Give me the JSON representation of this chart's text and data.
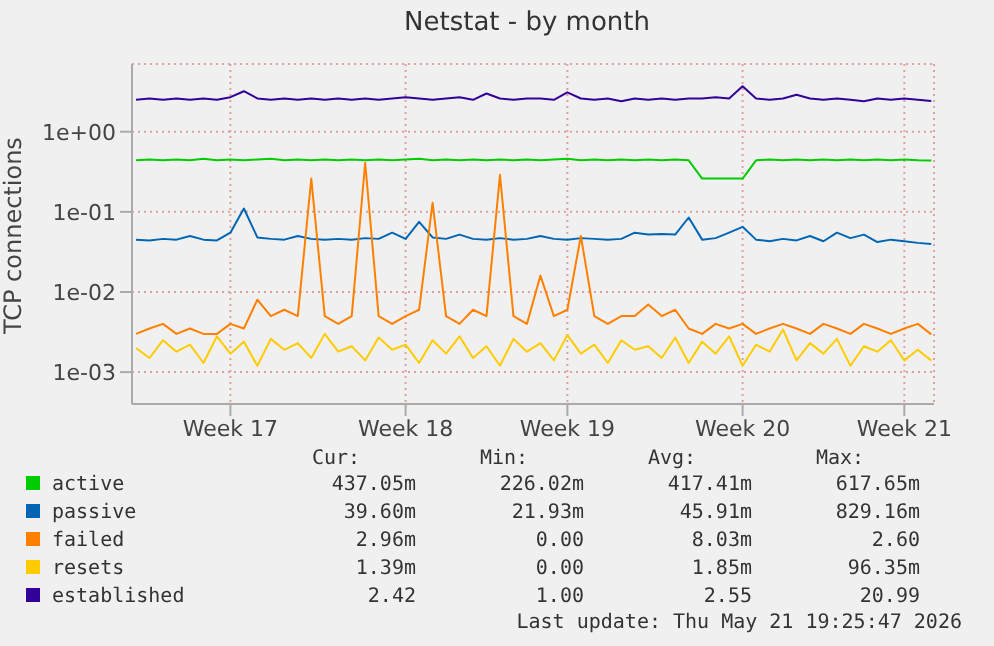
{
  "chart_data": {
    "type": "line",
    "title": "Netstat - by month",
    "ylabel": "TCP connections",
    "categories": [
      null,
      null,
      null,
      null,
      null,
      null,
      null,
      "Week 17",
      null,
      null,
      null,
      null,
      null,
      null,
      null,
      null,
      null,
      null,
      null,
      null,
      "Week 18",
      null,
      null,
      null,
      null,
      null,
      null,
      null,
      null,
      null,
      null,
      null,
      "Week 19",
      null,
      null,
      null,
      null,
      null,
      null,
      null,
      null,
      null,
      null,
      null,
      null,
      "Week 20",
      null,
      null,
      null,
      null,
      null,
      null,
      null,
      null,
      null,
      null,
      null,
      "Week 21",
      null,
      null
    ],
    "ylim": [
      0.0004,
      7
    ],
    "log": true,
    "yticks": [
      {
        "value": 0.001,
        "label": "1e-03"
      },
      {
        "value": 0.01,
        "label": "1e-02"
      },
      {
        "value": 0.1,
        "label": "1e-01"
      },
      {
        "value": 1,
        "label": "1e+00"
      }
    ],
    "grid": true,
    "legend": "bottom",
    "marker": "none",
    "line_style": "solid",
    "series": [
      {
        "name": "active",
        "color": "#00cc00",
        "values": [
          0.44,
          0.45,
          0.44,
          0.45,
          0.44,
          0.46,
          0.44,
          0.45,
          0.44,
          0.45,
          0.46,
          0.44,
          0.45,
          0.44,
          0.45,
          0.44,
          0.45,
          0.44,
          0.45,
          0.44,
          0.45,
          0.46,
          0.44,
          0.45,
          0.44,
          0.45,
          0.44,
          0.45,
          0.44,
          0.45,
          0.44,
          0.45,
          0.46,
          0.44,
          0.45,
          0.44,
          0.45,
          0.44,
          0.45,
          0.44,
          0.45,
          0.44,
          0.26,
          0.26,
          0.26,
          0.26,
          0.44,
          0.45,
          0.44,
          0.45,
          0.44,
          0.45,
          0.44,
          0.45,
          0.44,
          0.45,
          0.44,
          0.45,
          0.44,
          0.437
        ]
      },
      {
        "name": "passive",
        "color": "#0066b3",
        "values": [
          0.045,
          0.044,
          0.046,
          0.045,
          0.05,
          0.045,
          0.044,
          0.055,
          0.11,
          0.048,
          0.046,
          0.045,
          0.05,
          0.046,
          0.045,
          0.046,
          0.045,
          0.047,
          0.046,
          0.055,
          0.046,
          0.075,
          0.048,
          0.046,
          0.052,
          0.046,
          0.045,
          0.047,
          0.045,
          0.046,
          0.05,
          0.046,
          0.045,
          0.047,
          0.046,
          0.045,
          0.046,
          0.055,
          0.052,
          0.053,
          0.052,
          0.085,
          0.045,
          0.047,
          0.055,
          0.065,
          0.045,
          0.043,
          0.046,
          0.044,
          0.05,
          0.043,
          0.055,
          0.047,
          0.052,
          0.042,
          0.045,
          0.043,
          0.041,
          0.0396
        ]
      },
      {
        "name": "failed",
        "color": "#ff8000",
        "values": [
          0.003,
          0.0035,
          0.004,
          0.003,
          0.0035,
          0.003,
          0.003,
          0.004,
          0.0035,
          0.008,
          0.005,
          0.006,
          0.005,
          0.26,
          0.005,
          0.004,
          0.005,
          0.41,
          0.005,
          0.004,
          0.005,
          0.006,
          0.13,
          0.005,
          0.004,
          0.006,
          0.005,
          0.29,
          0.005,
          0.004,
          0.016,
          0.005,
          0.006,
          0.05,
          0.005,
          0.004,
          0.005,
          0.005,
          0.007,
          0.005,
          0.006,
          0.0035,
          0.003,
          0.004,
          0.0035,
          0.004,
          0.003,
          0.0035,
          0.004,
          0.0035,
          0.003,
          0.004,
          0.0035,
          0.003,
          0.004,
          0.0035,
          0.003,
          0.0035,
          0.004,
          0.00296
        ]
      },
      {
        "name": "resets",
        "color": "#ffcc00",
        "values": [
          0.002,
          0.0015,
          0.0025,
          0.0018,
          0.0022,
          0.0013,
          0.0028,
          0.0017,
          0.0024,
          0.0012,
          0.0026,
          0.0019,
          0.0023,
          0.0015,
          0.003,
          0.0018,
          0.0021,
          0.0014,
          0.0027,
          0.0019,
          0.0022,
          0.0013,
          0.0025,
          0.0017,
          0.0028,
          0.0015,
          0.0021,
          0.0012,
          0.0026,
          0.0018,
          0.0023,
          0.0014,
          0.0029,
          0.0017,
          0.0022,
          0.0013,
          0.0025,
          0.0019,
          0.0021,
          0.0015,
          0.0027,
          0.0013,
          0.0024,
          0.0017,
          0.0028,
          0.0012,
          0.0022,
          0.0018,
          0.0034,
          0.0014,
          0.0023,
          0.0017,
          0.0026,
          0.0012,
          0.0021,
          0.0018,
          0.0025,
          0.0014,
          0.0019,
          0.00139
        ]
      },
      {
        "name": "established",
        "color": "#330099",
        "values": [
          2.5,
          2.6,
          2.5,
          2.6,
          2.5,
          2.6,
          2.5,
          2.7,
          3.2,
          2.6,
          2.5,
          2.6,
          2.5,
          2.6,
          2.5,
          2.6,
          2.5,
          2.6,
          2.5,
          2.6,
          2.7,
          2.6,
          2.5,
          2.6,
          2.7,
          2.5,
          3.0,
          2.6,
          2.5,
          2.6,
          2.6,
          2.5,
          3.1,
          2.6,
          2.5,
          2.6,
          2.4,
          2.6,
          2.5,
          2.6,
          2.5,
          2.6,
          2.6,
          2.7,
          2.6,
          3.7,
          2.6,
          2.5,
          2.6,
          2.9,
          2.6,
          2.5,
          2.6,
          2.5,
          2.4,
          2.6,
          2.5,
          2.6,
          2.5,
          2.42
        ]
      }
    ],
    "annotations": [
      "Cur:",
      "Min:",
      "Avg:",
      "Max:",
      "437.05m",
      "226.02m",
      "417.41m",
      "617.65m",
      "39.60m",
      "21.93m",
      "45.91m",
      "829.16m",
      "2.96m",
      "0.00",
      "8.03m",
      "2.60",
      "1.39m",
      "0.00",
      "1.85m",
      "96.35m",
      "2.42",
      "1.00",
      "2.55",
      "20.99",
      "Last update: Thu May 21 19:25:47 2026"
    ]
  }
}
